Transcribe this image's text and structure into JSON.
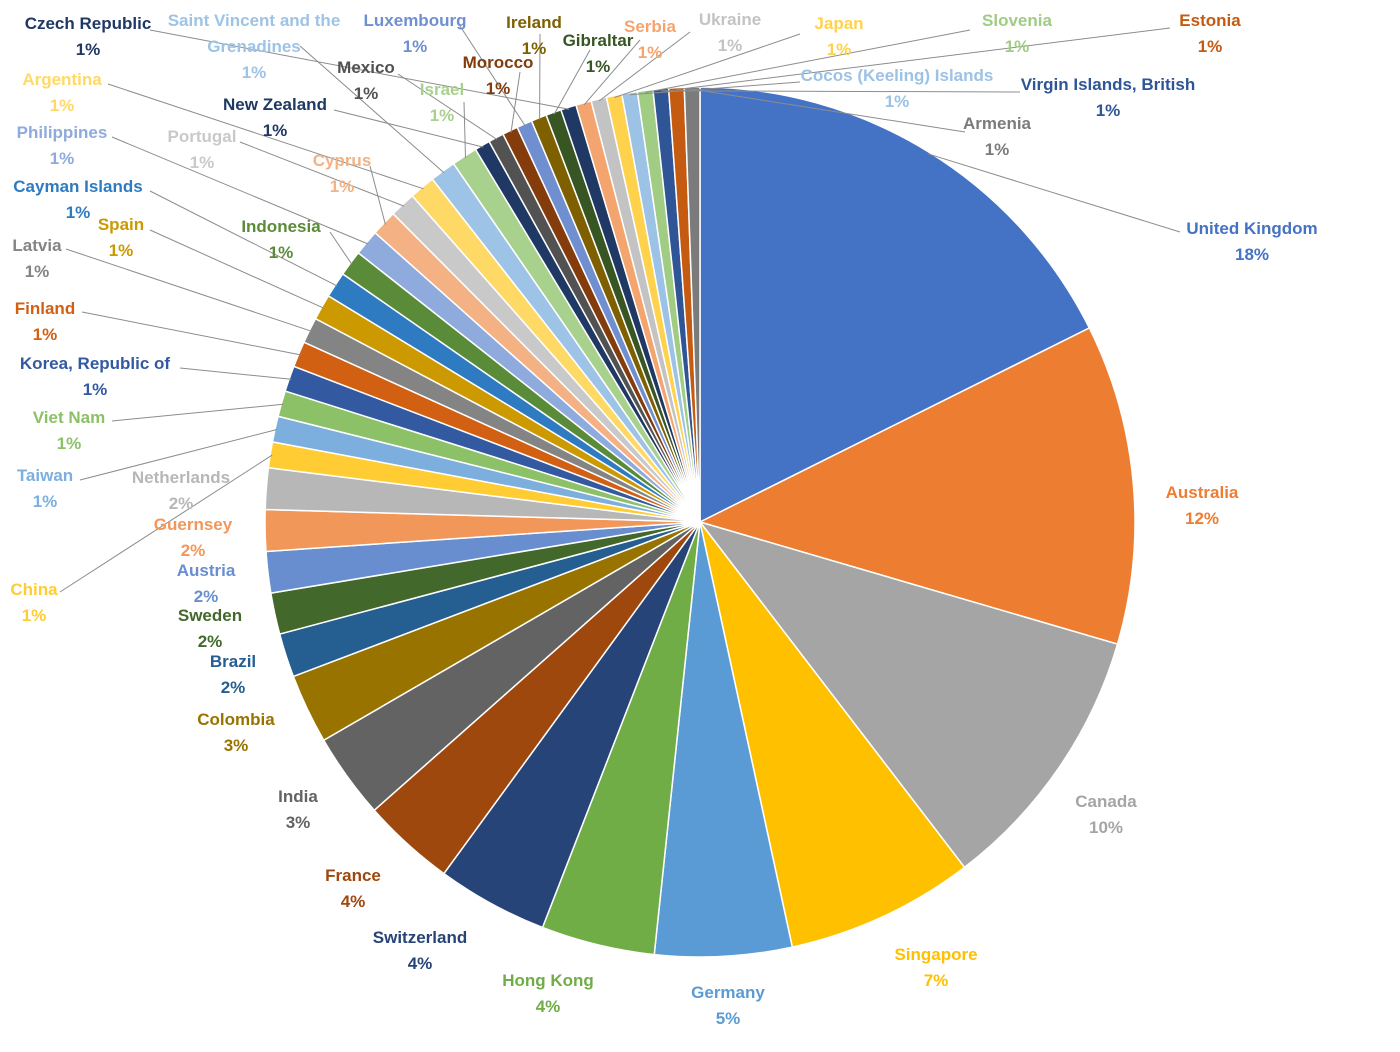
{
  "chart_data": {
    "type": "pie",
    "title": "",
    "show_percent_labels": true,
    "slices": [
      {
        "label": "United Kingdom",
        "pct_label": "18%",
        "value": 18.4,
        "color": "#4472C4"
      },
      {
        "label": "Australia",
        "pct_label": "12%",
        "value": 12.4,
        "color": "#ED7D31"
      },
      {
        "label": "Canada",
        "pct_label": "10%",
        "value": 10.5,
        "color": "#A5A5A5"
      },
      {
        "label": "Singapore",
        "pct_label": "7%",
        "value": 7.3,
        "color": "#FFC000"
      },
      {
        "label": "Germany",
        "pct_label": "5%",
        "value": 5.3,
        "color": "#5B9BD5"
      },
      {
        "label": "Hong Kong",
        "pct_label": "4%",
        "value": 4.4,
        "color": "#70AD47"
      },
      {
        "label": "Switzerland",
        "pct_label": "4%",
        "value": 4.3,
        "color": "#264478"
      },
      {
        "label": "France",
        "pct_label": "4%",
        "value": 3.6,
        "color": "#9E480E"
      },
      {
        "label": "India",
        "pct_label": "3%",
        "value": 3.3,
        "color": "#636363"
      },
      {
        "label": "Colombia",
        "pct_label": "3%",
        "value": 2.7,
        "color": "#997300"
      },
      {
        "label": "Brazil",
        "pct_label": "2%",
        "value": 1.7,
        "color": "#255E91"
      },
      {
        "label": "Sweden",
        "pct_label": "2%",
        "value": 1.6,
        "color": "#43682B"
      },
      {
        "label": "Austria",
        "pct_label": "2%",
        "value": 1.6,
        "color": "#698ED0"
      },
      {
        "label": "Guernsey",
        "pct_label": "2%",
        "value": 1.6,
        "color": "#F1975A"
      },
      {
        "label": "Netherlands",
        "pct_label": "2%",
        "value": 1.6,
        "color": "#B7B7B7"
      },
      {
        "label": "China",
        "pct_label": "1%",
        "value": 1.0,
        "color": "#FFCD33"
      },
      {
        "label": "Taiwan",
        "pct_label": "1%",
        "value": 1.0,
        "color": "#7CAFDD"
      },
      {
        "label": "Viet Nam",
        "pct_label": "1%",
        "value": 1.0,
        "color": "#8CC168"
      },
      {
        "label": "Korea, Republic of",
        "pct_label": "1%",
        "value": 1.0,
        "color": "#335AA1"
      },
      {
        "label": "Finland",
        "pct_label": "1%",
        "value": 1.0,
        "color": "#D26012"
      },
      {
        "label": "Latvia",
        "pct_label": "1%",
        "value": 1.0,
        "color": "#848484"
      },
      {
        "label": "Spain",
        "pct_label": "1%",
        "value": 1.0,
        "color": "#CC9A00"
      },
      {
        "label": "Cayman Islands",
        "pct_label": "1%",
        "value": 1.0,
        "color": "#2E7BC2"
      },
      {
        "label": "Indonesia",
        "pct_label": "1%",
        "value": 1.0,
        "color": "#5A8B38"
      },
      {
        "label": "Philippines",
        "pct_label": "1%",
        "value": 1.0,
        "color": "#8FAADC"
      },
      {
        "label": "Cyprus",
        "pct_label": "1%",
        "value": 1.0,
        "color": "#F4B183"
      },
      {
        "label": "Portugal",
        "pct_label": "1%",
        "value": 1.0,
        "color": "#C9C9C9"
      },
      {
        "label": "Argentina",
        "pct_label": "1%",
        "value": 1.0,
        "color": "#FFD966"
      },
      {
        "label": "Saint Vincent and the Grenadines",
        "pct_label": "1%",
        "value": 1.0,
        "color": "#9DC3E6"
      },
      {
        "label": "Israel",
        "pct_label": "1%",
        "value": 1.0,
        "color": "#A9D18E"
      },
      {
        "label": "New Zealand",
        "pct_label": "1%",
        "value": 0.6,
        "color": "#1F3864"
      },
      {
        "label": "Mexico",
        "pct_label": "1%",
        "value": 0.6,
        "color": "#525252"
      },
      {
        "label": "Morocco",
        "pct_label": "1%",
        "value": 0.6,
        "color": "#843C0C"
      },
      {
        "label": "Luxembourg",
        "pct_label": "1%",
        "value": 0.6,
        "color": "#6F8FD1"
      },
      {
        "label": "Ireland",
        "pct_label": "1%",
        "value": 0.6,
        "color": "#7F6000"
      },
      {
        "label": "Gibraltar",
        "pct_label": "1%",
        "value": 0.6,
        "color": "#375623"
      },
      {
        "label": "Czech Republic",
        "pct_label": "1%",
        "value": 0.6,
        "color": "#203864"
      },
      {
        "label": "Serbia",
        "pct_label": "1%",
        "value": 0.6,
        "color": "#F4A46E"
      },
      {
        "label": "Ukraine",
        "pct_label": "1%",
        "value": 0.6,
        "color": "#C3C3C3"
      },
      {
        "label": "Japan",
        "pct_label": "1%",
        "value": 0.6,
        "color": "#FFD24D"
      },
      {
        "label": "Cocos (Keeling) Islands",
        "pct_label": "1%",
        "value": 0.6,
        "color": "#9CC2E5"
      },
      {
        "label": "Slovenia",
        "pct_label": "1%",
        "value": 0.6,
        "color": "#A0CC84"
      },
      {
        "label": "Virgin Islands, British",
        "pct_label": "1%",
        "value": 0.6,
        "color": "#2F5597"
      },
      {
        "label": "Estonia",
        "pct_label": "1%",
        "value": 0.6,
        "color": "#C55A11"
      },
      {
        "label": "Armenia",
        "pct_label": "1%",
        "value": 0.6,
        "color": "#7B7B7B"
      }
    ]
  }
}
